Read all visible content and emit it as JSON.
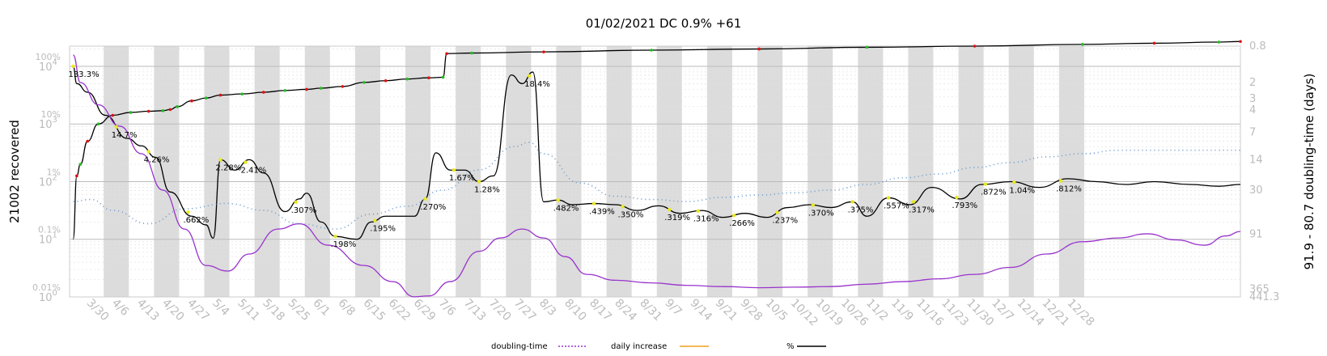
{
  "chart_data": {
    "type": "line",
    "title": "01/02/2021 DC 0.9% +61",
    "ylabel_left": "21002 recovered",
    "ylabel_right": "91.9 - 80.7 doubling-time (days)",
    "x_ticks": [
      "3/30",
      "4/6",
      "4/13",
      "4/20",
      "4/27",
      "5/4",
      "5/11",
      "5/18",
      "5/25",
      "6/1",
      "6/8",
      "6/15",
      "6/22",
      "6/29",
      "7/6",
      "7/13",
      "7/20",
      "7/27",
      "8/3",
      "8/10",
      "8/17",
      "8/24",
      "8/31",
      "9/7",
      "9/14",
      "9/21",
      "9/28",
      "10/5",
      "10/12",
      "10/19",
      "10/26",
      "11/2",
      "11/9",
      "11/16",
      "11/23",
      "11/30",
      "12/7",
      "12/14",
      "12/21",
      "12/28"
    ],
    "left_axis_ticks": [
      {
        "exp": "4",
        "pct": "100%"
      },
      {
        "exp": "3",
        "pct": "10%"
      },
      {
        "exp": "2",
        "pct": "1%"
      },
      {
        "exp": "1",
        "pct": "0.1%"
      },
      {
        "exp": "0",
        "pct": "0.01%"
      }
    ],
    "right_axis_ticks": [
      "0.8",
      "2",
      "3",
      "4",
      "7",
      "14",
      "30",
      "91",
      "365",
      "441.3"
    ],
    "legend": [
      {
        "label": "doubling-time",
        "color": "#9933cc",
        "style": "dotted"
      },
      {
        "label": "daily increase",
        "color": "#f0a020",
        "style": "solid"
      },
      {
        "label": "%",
        "color": "#000000",
        "style": "solid"
      }
    ],
    "pct_annotations": [
      {
        "x": "3/25",
        "label": "133.3%"
      },
      {
        "x": "4/6",
        "label": "14.7%"
      },
      {
        "x": "4/15",
        "label": "4.26%"
      },
      {
        "x": "4/26",
        "label": ".662%"
      },
      {
        "x": "5/5",
        "label": "2.28%"
      },
      {
        "x": "5/12",
        "label": "2.41%"
      },
      {
        "x": "5/26",
        "label": ".307%"
      },
      {
        "x": "6/6",
        "label": ".198%"
      },
      {
        "x": "6/17",
        "label": ".195%"
      },
      {
        "x": "7/1",
        "label": ".270%"
      },
      {
        "x": "7/9",
        "label": "1.67%"
      },
      {
        "x": "7/16",
        "label": "1.28%"
      },
      {
        "x": "7/30",
        "label": "18.4%"
      },
      {
        "x": "8/7",
        "label": ".482%"
      },
      {
        "x": "8/17",
        "label": ".439%"
      },
      {
        "x": "8/25",
        "label": ".350%"
      },
      {
        "x": "9/7",
        "label": ".319%"
      },
      {
        "x": "9/15",
        "label": ".316%"
      },
      {
        "x": "9/25",
        "label": ".266%"
      },
      {
        "x": "10/7",
        "label": ".237%"
      },
      {
        "x": "10/17",
        "label": ".370%"
      },
      {
        "x": "10/28",
        "label": ".375%"
      },
      {
        "x": "11/7",
        "label": ".557%"
      },
      {
        "x": "11/14",
        "label": ".317%"
      },
      {
        "x": "11/26",
        "label": ".793%"
      },
      {
        "x": "12/4",
        "label": ".872%"
      },
      {
        "x": "12/12",
        "label": "1.04%"
      },
      {
        "x": "12/25",
        "label": ".812%"
      }
    ],
    "series": [
      {
        "name": "recovered",
        "color": "#000000",
        "scale": "log10",
        "points": [
          [
            -1,
            1
          ],
          [
            0,
            2.1
          ],
          [
            1,
            2.3
          ],
          [
            3,
            2.7
          ],
          [
            6,
            3.0
          ],
          [
            10,
            3.15
          ],
          [
            15,
            3.2
          ],
          [
            20,
            3.22
          ],
          [
            24,
            3.23
          ],
          [
            26,
            3.25
          ],
          [
            28,
            3.3
          ],
          [
            32,
            3.4
          ],
          [
            36,
            3.45
          ],
          [
            40,
            3.5
          ],
          [
            46,
            3.52
          ],
          [
            52,
            3.55
          ],
          [
            58,
            3.58
          ],
          [
            64,
            3.6
          ],
          [
            68,
            3.62
          ],
          [
            74,
            3.65
          ],
          [
            80,
            3.72
          ],
          [
            86,
            3.75
          ],
          [
            92,
            3.78
          ],
          [
            98,
            3.8
          ],
          [
            102,
            3.81
          ],
          [
            103,
            4.22
          ],
          [
            110,
            4.23
          ],
          [
            130,
            4.25
          ],
          [
            160,
            4.28
          ],
          [
            190,
            4.3
          ],
          [
            220,
            4.33
          ],
          [
            250,
            4.35
          ],
          [
            280,
            4.38
          ],
          [
            300,
            4.4
          ],
          [
            318,
            4.42
          ],
          [
            324,
            4.43
          ]
        ]
      },
      {
        "name": "%",
        "color": "#000000",
        "scale": "log10 percent",
        "points": [
          [
            -1,
            2.0
          ],
          [
            0,
            1.7
          ],
          [
            3,
            1.55
          ],
          [
            8,
            1.15
          ],
          [
            14,
            0.75
          ],
          [
            18,
            0.62
          ],
          [
            22,
            0.42
          ],
          [
            26,
            -0.18
          ],
          [
            32,
            -0.6
          ],
          [
            36,
            -0.75
          ],
          [
            38,
            -0.98
          ],
          [
            40,
            0.38
          ],
          [
            44,
            0.2
          ],
          [
            48,
            0.38
          ],
          [
            52,
            0.15
          ],
          [
            58,
            -0.52
          ],
          [
            62,
            -0.3
          ],
          [
            64,
            -0.2
          ],
          [
            68,
            -0.7
          ],
          [
            72,
            -0.95
          ],
          [
            78,
            -1.0
          ],
          [
            82,
            -0.7
          ],
          [
            86,
            -0.6
          ],
          [
            90,
            -0.6
          ],
          [
            94,
            -0.6
          ],
          [
            97,
            -0.3
          ],
          [
            100,
            0.5
          ],
          [
            104,
            0.2
          ],
          [
            108,
            0.2
          ],
          [
            112,
            0.0
          ],
          [
            116,
            0.1
          ],
          [
            121,
            1.85
          ],
          [
            124,
            1.7
          ],
          [
            127,
            1.9
          ],
          [
            130,
            -0.35
          ],
          [
            134,
            -0.32
          ],
          [
            138,
            -0.4
          ],
          [
            144,
            -0.38
          ],
          [
            150,
            -0.4
          ],
          [
            156,
            -0.5
          ],
          [
            162,
            -0.42
          ],
          [
            168,
            -0.55
          ],
          [
            174,
            -0.5
          ],
          [
            180,
            -0.62
          ],
          [
            186,
            -0.55
          ],
          [
            192,
            -0.62
          ],
          [
            198,
            -0.45
          ],
          [
            204,
            -0.4
          ],
          [
            210,
            -0.45
          ],
          [
            216,
            -0.35
          ],
          [
            220,
            -0.6
          ],
          [
            226,
            -0.28
          ],
          [
            232,
            -0.4
          ],
          [
            238,
            -0.1
          ],
          [
            246,
            -0.3
          ],
          [
            252,
            -0.05
          ],
          [
            260,
            0.0
          ],
          [
            268,
            -0.1
          ],
          [
            276,
            0.05
          ],
          [
            284,
            0.0
          ],
          [
            292,
            -0.05
          ],
          [
            300,
            0.0
          ],
          [
            310,
            -0.05
          ],
          [
            318,
            -0.08
          ],
          [
            324,
            -0.05
          ]
        ]
      },
      {
        "name": "doubling-time (smoothed)",
        "color": "#9933cc",
        "scale": "days",
        "points": [
          [
            -1,
            1
          ],
          [
            1,
            2
          ],
          [
            6,
            3.5
          ],
          [
            12,
            6
          ],
          [
            18,
            12
          ],
          [
            24,
            30
          ],
          [
            30,
            80
          ],
          [
            36,
            200
          ],
          [
            42,
            230
          ],
          [
            48,
            150
          ],
          [
            56,
            80
          ],
          [
            62,
            70
          ],
          [
            70,
            120
          ],
          [
            80,
            200
          ],
          [
            88,
            300
          ],
          [
            94,
            440
          ],
          [
            98,
            430
          ],
          [
            104,
            300
          ],
          [
            112,
            140
          ],
          [
            118,
            100
          ],
          [
            124,
            80
          ],
          [
            130,
            100
          ],
          [
            136,
            160
          ],
          [
            142,
            250
          ],
          [
            150,
            290
          ],
          [
            160,
            310
          ],
          [
            170,
            330
          ],
          [
            180,
            340
          ],
          [
            190,
            350
          ],
          [
            200,
            345
          ],
          [
            210,
            340
          ],
          [
            220,
            320
          ],
          [
            230,
            300
          ],
          [
            240,
            280
          ],
          [
            250,
            250
          ],
          [
            260,
            210
          ],
          [
            270,
            150
          ],
          [
            280,
            110
          ],
          [
            290,
            100
          ],
          [
            298,
            90
          ],
          [
            306,
            105
          ],
          [
            314,
            120
          ],
          [
            320,
            95
          ],
          [
            324,
            85
          ]
        ]
      },
      {
        "name": "doubling-time",
        "color": "#6699cc",
        "scale": "days",
        "points": [
          [
            -1,
            40
          ],
          [
            4,
            38
          ],
          [
            10,
            50
          ],
          [
            20,
            70
          ],
          [
            30,
            48
          ],
          [
            42,
            42
          ],
          [
            52,
            50
          ],
          [
            62,
            70
          ],
          [
            72,
            80
          ],
          [
            82,
            55
          ],
          [
            92,
            45
          ],
          [
            102,
            30
          ],
          [
            112,
            18
          ],
          [
            122,
            10
          ],
          [
            126,
            9
          ],
          [
            130,
            12
          ],
          [
            140,
            25
          ],
          [
            150,
            35
          ],
          [
            160,
            38
          ],
          [
            170,
            40
          ],
          [
            180,
            36
          ],
          [
            190,
            34
          ],
          [
            200,
            32
          ],
          [
            210,
            30
          ],
          [
            220,
            26
          ],
          [
            230,
            22
          ],
          [
            240,
            20
          ],
          [
            250,
            17
          ],
          [
            260,
            15
          ],
          [
            270,
            13
          ],
          [
            280,
            12
          ],
          [
            290,
            11
          ],
          [
            300,
            11
          ],
          [
            310,
            11
          ],
          [
            318,
            11
          ],
          [
            324,
            11
          ]
        ]
      }
    ]
  }
}
